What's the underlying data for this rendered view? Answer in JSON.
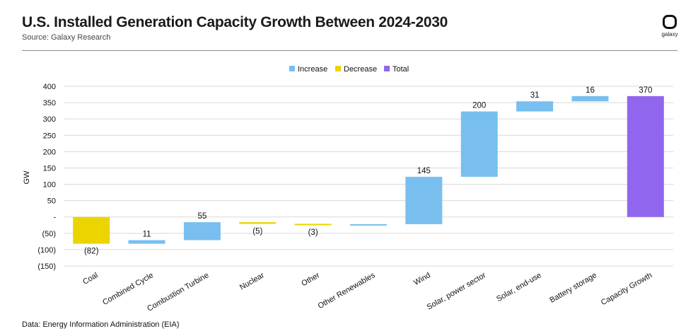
{
  "header": {
    "title": "U.S. Installed Generation Capacity Growth Between 2024-2030",
    "source": "Source: Galaxy Research",
    "logo_text": "galaxy"
  },
  "footer": {
    "data_source": "Data: Energy Information Administration (EIA)"
  },
  "colors": {
    "increase": "#78bff0",
    "decrease": "#ecd400",
    "total": "#9166ee",
    "grid": "#d9d9d9"
  },
  "chart_data": {
    "type": "waterfall",
    "title": "U.S. Installed Generation Capacity Growth Between 2024-2030",
    "ylabel": "GW",
    "ylim": [
      -150,
      400
    ],
    "yticks": [
      400,
      350,
      300,
      250,
      200,
      150,
      100,
      50,
      0,
      -50,
      -100,
      -150
    ],
    "ytick_labels": [
      "400",
      "350",
      "300",
      "250",
      "200",
      "150",
      "100",
      "50",
      "-",
      "(50)",
      "(100)",
      "(150)"
    ],
    "legend": {
      "position": "top-center",
      "entries": [
        "Increase",
        "Decrease",
        "Total"
      ]
    },
    "categories": [
      "Coal",
      "Combined Cycle",
      "Combustion Turbine",
      "Nuclear",
      "Other",
      "Other Renewables",
      "Wind",
      "Solar, power sector",
      "Solar, end-use",
      "Battery storage",
      "Capacity Growth"
    ],
    "bars": [
      {
        "category": "Coal",
        "kind": "decrease",
        "start": 0,
        "end": -82,
        "label": "(82)"
      },
      {
        "category": "Combined Cycle",
        "kind": "increase",
        "start": -82,
        "end": -71,
        "label": "11"
      },
      {
        "category": "Combustion Turbine",
        "kind": "increase",
        "start": -71,
        "end": -16,
        "label": "55"
      },
      {
        "category": "Nuclear",
        "kind": "decrease",
        "start": -16,
        "end": -21,
        "label": "(5)"
      },
      {
        "category": "Other",
        "kind": "decrease",
        "start": -21,
        "end": -24,
        "label": "(3)"
      },
      {
        "category": "Other Renewables",
        "kind": "increase",
        "start": -24,
        "end": -22,
        "label": ""
      },
      {
        "category": "Wind",
        "kind": "increase",
        "start": -22,
        "end": 123,
        "label": "145"
      },
      {
        "category": "Solar, power sector",
        "kind": "increase",
        "start": 123,
        "end": 323,
        "label": "200"
      },
      {
        "category": "Solar, end-use",
        "kind": "increase",
        "start": 323,
        "end": 354,
        "label": "31"
      },
      {
        "category": "Battery storage",
        "kind": "increase",
        "start": 354,
        "end": 370,
        "label": "16"
      },
      {
        "category": "Capacity Growth",
        "kind": "total",
        "start": 0,
        "end": 370,
        "label": "370"
      }
    ]
  }
}
